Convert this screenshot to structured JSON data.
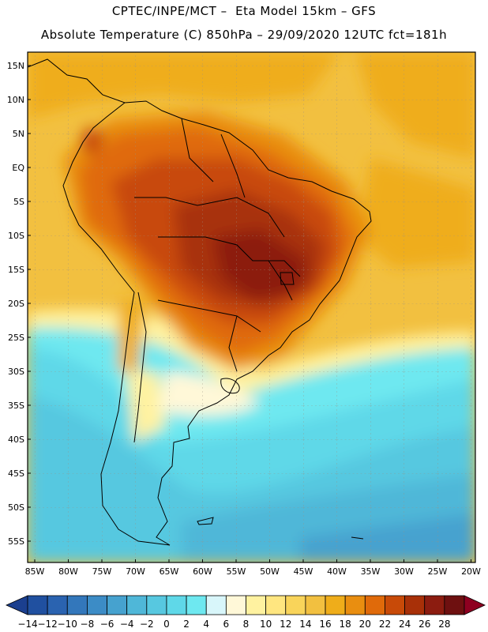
{
  "header": {
    "line1": "CPTEC/INPE/MCT –  Eta Model 15km – GFS",
    "line2": "Absolute Temperature (C) 850hPa – 29/09/2020 12UTC fct=181h"
  },
  "lat_labels": [
    "15N",
    "10N",
    "5N",
    "EQ",
    "5S",
    "10S",
    "15S",
    "20S",
    "25S",
    "30S",
    "35S",
    "40S",
    "45S",
    "50S",
    "55S"
  ],
  "lon_labels": [
    "85W",
    "80W",
    "75W",
    "70W",
    "65W",
    "60W",
    "55W",
    "50W",
    "45W",
    "40W",
    "35W",
    "30W",
    "25W",
    "20W"
  ],
  "colorbar": {
    "labels": [
      "-14",
      "-12",
      "-10",
      "-8",
      "-6",
      "-4",
      "-2",
      "0",
      "2",
      "4",
      "6",
      "8",
      "10",
      "12",
      "14",
      "16",
      "18",
      "20",
      "22",
      "24",
      "26",
      "28"
    ],
    "colors": [
      "#1b3f8f",
      "#2050a0",
      "#2a63b0",
      "#3377bb",
      "#3c8cc6",
      "#46a2cf",
      "#4fb7d8",
      "#57c8e0",
      "#5fd8e8",
      "#6ee8f0",
      "#d8f6fa",
      "#fff8d8",
      "#fff2a0",
      "#ffe680",
      "#f9d45a",
      "#f2c040",
      "#efad1a",
      "#e98e10",
      "#e06a0a",
      "#c84a08",
      "#a83008",
      "#8c1c10",
      "#6e1010",
      "#8e0020"
    ]
  }
}
